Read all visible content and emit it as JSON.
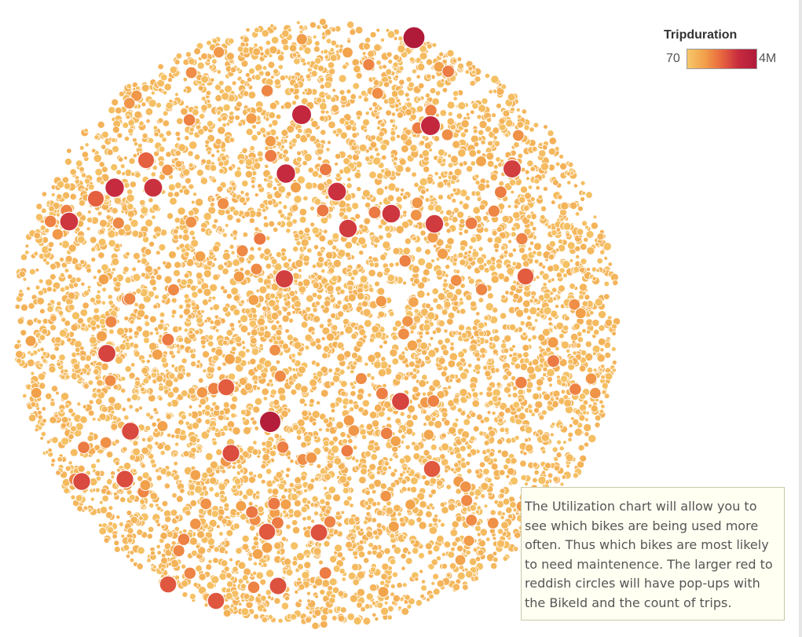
{
  "chart_data": {
    "type": "packed-bubble",
    "measure": "Tripduration",
    "size_encoding": "Tripduration",
    "color_encoding": "Tripduration",
    "legend": {
      "title": "Tripduration",
      "min_label": "70",
      "max_label": "4M",
      "placement": "top-right",
      "colors": [
        "#f6c76a",
        "#f2a04a",
        "#e8653f",
        "#c62a3f",
        "#b01b3a"
      ]
    },
    "highlighted_bubbles": [
      {
        "level": 1.0
      },
      {
        "level": 0.95
      },
      {
        "level": 0.8
      },
      {
        "level": 0.8
      },
      {
        "level": 0.75
      },
      {
        "level": 0.75
      },
      {
        "level": 0.72
      },
      {
        "level": 0.72
      },
      {
        "level": 0.7
      },
      {
        "level": 0.7
      },
      {
        "level": 0.68
      },
      {
        "level": 0.68
      },
      {
        "level": 0.66
      },
      {
        "level": 0.66
      },
      {
        "level": 0.64
      },
      {
        "level": 0.64
      },
      {
        "level": 0.62
      },
      {
        "level": 0.62
      },
      {
        "level": 0.6
      },
      {
        "level": 0.6
      },
      {
        "level": 0.58
      },
      {
        "level": 0.58
      },
      {
        "level": 0.56
      },
      {
        "level": 0.56
      },
      {
        "level": 0.55
      },
      {
        "level": 0.55
      },
      {
        "level": 0.54
      },
      {
        "level": 0.54
      },
      {
        "level": 0.52
      },
      {
        "level": 0.52
      }
    ]
  },
  "annotation": {
    "text": "The Utilization chart will allow you to see which bikes are being used more often. Thus which bikes are most likely to need maintenence. The larger red to reddish circles will have pop-ups with the BikeId and the count of trips."
  }
}
